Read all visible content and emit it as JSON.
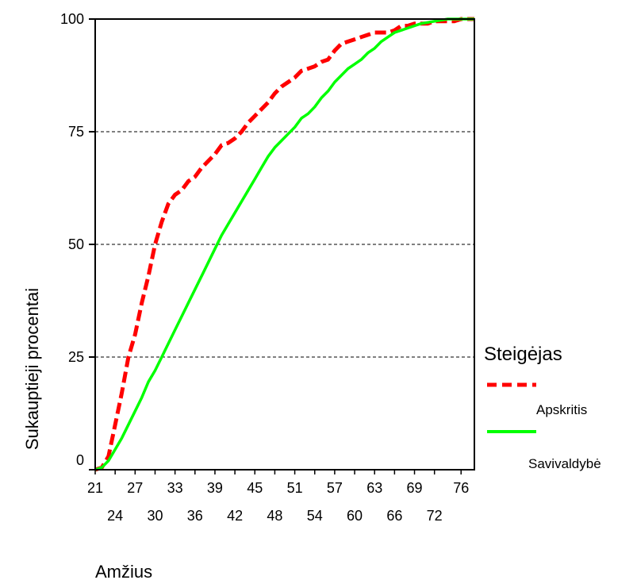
{
  "chart_data": {
    "type": "line",
    "title": "",
    "xlabel": "Amžius",
    "ylabel": "Sukauptieji procentai",
    "xlim": [
      21,
      78
    ],
    "ylim": [
      0,
      100
    ],
    "x_ticks_row1": [
      "21",
      "27",
      "33",
      "39",
      "45",
      "51",
      "57",
      "63",
      "69",
      "76"
    ],
    "x_ticks_row2": [
      "24",
      "30",
      "36",
      "42",
      "48",
      "54",
      "60",
      "66",
      "72"
    ],
    "y_ticks": [
      "0",
      "25",
      "50",
      "75",
      "100"
    ],
    "y_tick_values": [
      0,
      25,
      50,
      75,
      100
    ],
    "grid": "horizontal dashed",
    "legend": {
      "title": "Steigėjas",
      "placement": "right"
    },
    "series": [
      {
        "name": "Apskritis",
        "color": "#ff0000",
        "style": "dashed",
        "points": [
          [
            21,
            0
          ],
          [
            22,
            0.5
          ],
          [
            23,
            3
          ],
          [
            24,
            10
          ],
          [
            25,
            17
          ],
          [
            26,
            25
          ],
          [
            27,
            30
          ],
          [
            28,
            37
          ],
          [
            29,
            43
          ],
          [
            30,
            50
          ],
          [
            31,
            55
          ],
          [
            32,
            59
          ],
          [
            33,
            61
          ],
          [
            34,
            62
          ],
          [
            35,
            64
          ],
          [
            36,
            65
          ],
          [
            37,
            67
          ],
          [
            38,
            68.5
          ],
          [
            39,
            70
          ],
          [
            40,
            72
          ],
          [
            41,
            72.5
          ],
          [
            42,
            73.5
          ],
          [
            43,
            75
          ],
          [
            44,
            77
          ],
          [
            45,
            78.5
          ],
          [
            46,
            80
          ],
          [
            47,
            81.5
          ],
          [
            48,
            83.5
          ],
          [
            49,
            85
          ],
          [
            50,
            86
          ],
          [
            51,
            87
          ],
          [
            52,
            88.5
          ],
          [
            53,
            89
          ],
          [
            54,
            89.5
          ],
          [
            55,
            90.5
          ],
          [
            56,
            91
          ],
          [
            57,
            93
          ],
          [
            58,
            94.5
          ],
          [
            59,
            95
          ],
          [
            60,
            95.5
          ],
          [
            61,
            96
          ],
          [
            62,
            96.5
          ],
          [
            63,
            97
          ],
          [
            64,
            97
          ],
          [
            65,
            97
          ],
          [
            66,
            97.5
          ],
          [
            67,
            98.5
          ],
          [
            68,
            98.5
          ],
          [
            69,
            99
          ],
          [
            70,
            99
          ],
          [
            71,
            99
          ],
          [
            72,
            99.5
          ],
          [
            74,
            99.5
          ],
          [
            75,
            99.5
          ],
          [
            76,
            100
          ],
          [
            78,
            100
          ]
        ]
      },
      {
        "name": "Savivaldybė",
        "color": "#00ff00",
        "style": "solid",
        "points": [
          [
            21,
            0
          ],
          [
            22,
            0.5
          ],
          [
            23,
            2
          ],
          [
            24,
            4.5
          ],
          [
            25,
            7
          ],
          [
            26,
            10
          ],
          [
            27,
            13
          ],
          [
            28,
            16
          ],
          [
            29,
            19.5
          ],
          [
            30,
            22
          ],
          [
            31,
            25
          ],
          [
            32,
            28
          ],
          [
            33,
            31
          ],
          [
            34,
            34
          ],
          [
            35,
            37
          ],
          [
            36,
            40
          ],
          [
            37,
            43
          ],
          [
            38,
            46
          ],
          [
            39,
            49
          ],
          [
            40,
            52
          ],
          [
            41,
            54.5
          ],
          [
            42,
            57
          ],
          [
            43,
            59.5
          ],
          [
            44,
            62
          ],
          [
            45,
            64.5
          ],
          [
            46,
            67
          ],
          [
            47,
            69.5
          ],
          [
            48,
            71.5
          ],
          [
            49,
            73
          ],
          [
            50,
            74.5
          ],
          [
            51,
            76
          ],
          [
            52,
            78
          ],
          [
            53,
            79
          ],
          [
            54,
            80.5
          ],
          [
            55,
            82.5
          ],
          [
            56,
            84
          ],
          [
            57,
            86
          ],
          [
            58,
            87.5
          ],
          [
            59,
            89
          ],
          [
            60,
            90
          ],
          [
            61,
            91
          ],
          [
            62,
            92.5
          ],
          [
            63,
            93.5
          ],
          [
            64,
            95
          ],
          [
            65,
            96
          ],
          [
            66,
            97
          ],
          [
            67,
            97.5
          ],
          [
            68,
            98
          ],
          [
            69,
            98.5
          ],
          [
            70,
            99
          ],
          [
            72,
            99.5
          ],
          [
            74,
            100
          ],
          [
            78,
            100
          ]
        ]
      }
    ]
  }
}
